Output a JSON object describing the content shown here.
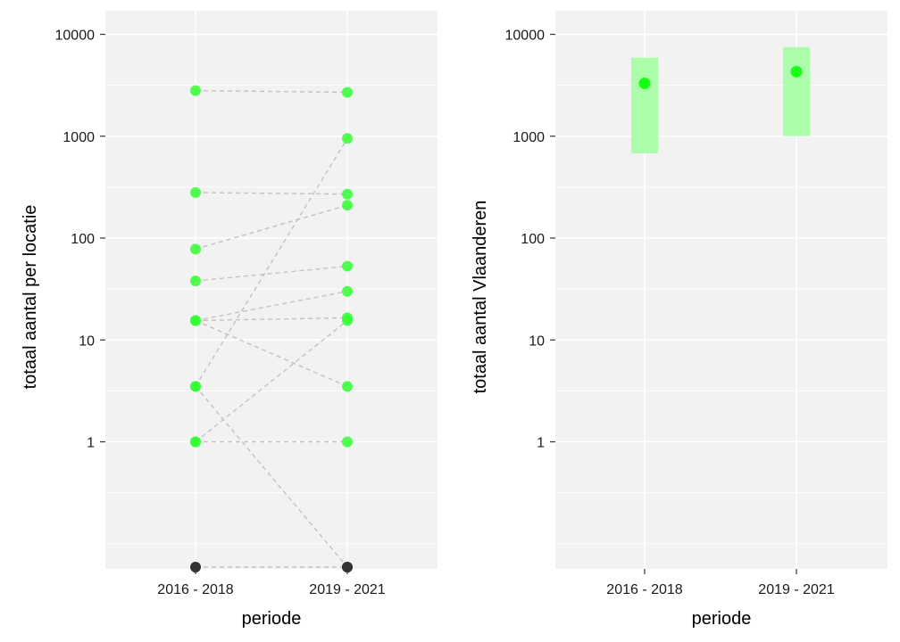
{
  "chart_data": [
    {
      "type": "scatter",
      "subtype": "slope",
      "xlabel": "periode",
      "ylabel": "totaal aantal per locatie",
      "y_scale": "log",
      "categories": [
        "2016 - 2018",
        "2019 - 2021"
      ],
      "y_ticks": [
        1,
        10,
        100,
        1000,
        10000
      ],
      "y_tick_labels": [
        "1",
        "10",
        "100",
        "1000",
        "10000"
      ],
      "grid": true,
      "legend": "none",
      "colors": {
        "panel": "#f2f2f2",
        "grid": "#ffffff",
        "point": "#33ff33",
        "zero_point": "#333333",
        "line": "#c2c2c2"
      },
      "series": [
        {
          "values": [
            2800,
            2700
          ]
        },
        {
          "values": [
            280,
            270
          ]
        },
        {
          "values": [
            78,
            210
          ]
        },
        {
          "values": [
            38,
            53
          ]
        },
        {
          "values": [
            15.5,
            30
          ]
        },
        {
          "values": [
            15.5,
            16.5
          ]
        },
        {
          "values": [
            15.5,
            3.5
          ]
        },
        {
          "values": [
            3.5,
            950
          ]
        },
        {
          "values": [
            3.5,
            0
          ]
        },
        {
          "values": [
            1,
            15.5
          ]
        },
        {
          "values": [
            1,
            1
          ]
        },
        {
          "values": [
            0,
            0
          ]
        }
      ]
    },
    {
      "type": "scatter",
      "subtype": "point-range",
      "xlabel": "periode",
      "ylabel": "totaal aantal Vlaanderen",
      "y_scale": "log",
      "categories": [
        "2016 - 2018",
        "2019 - 2021"
      ],
      "y_ticks": [
        1,
        10,
        100,
        1000,
        10000
      ],
      "y_tick_labels": [
        "1",
        "10",
        "100",
        "1000",
        "10000"
      ],
      "grid": true,
      "legend": "none",
      "colors": {
        "panel": "#f2f2f2",
        "grid": "#ffffff",
        "point": "#1aff1a",
        "band": "#99ff99"
      },
      "values": [
        3300,
        4300
      ],
      "lower": [
        680,
        1000
      ],
      "upper": [
        5900,
        7500
      ]
    }
  ]
}
